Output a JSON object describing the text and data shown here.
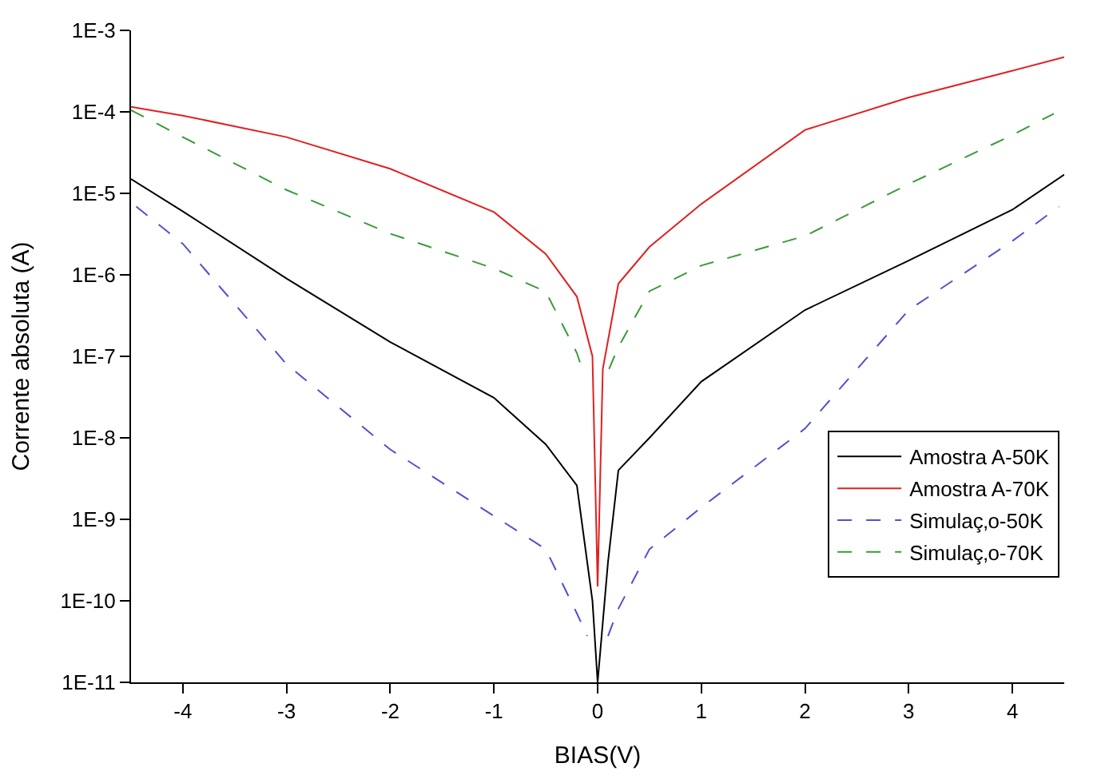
{
  "chart_data": {
    "type": "line",
    "xlabel": "BIAS(V)",
    "ylabel": "Corrente absoluta (A)",
    "log": "y",
    "grid": false,
    "legend": "bottom right",
    "marker": "none",
    "xlim": [
      -4.5,
      4.5
    ],
    "xticks": [
      -4,
      -3,
      -2,
      -1,
      0,
      1,
      2,
      3,
      4
    ],
    "ylim": [
      1e-11,
      0.001
    ],
    "yticks": [
      {
        "value": 1e-11,
        "label": "1E-11"
      },
      {
        "value": 1e-10,
        "label": "1E-10"
      },
      {
        "value": 1e-09,
        "label": "1E-9"
      },
      {
        "value": 1e-08,
        "label": "1E-8"
      },
      {
        "value": 1e-07,
        "label": "1E-7"
      },
      {
        "value": 1e-06,
        "label": "1E-6"
      },
      {
        "value": 1e-05,
        "label": "1E-5"
      },
      {
        "value": 0.0001,
        "label": "1E-4"
      },
      {
        "value": 0.001,
        "label": "1E-3"
      }
    ],
    "series": [
      {
        "name": "Amostra A-50K",
        "color": "#000000",
        "line_style": "solid",
        "x": [
          -4.5,
          -4,
          -3,
          -2,
          -1,
          -0.5,
          -0.2,
          -0.05,
          0,
          0.1,
          0.2,
          0.5,
          1,
          2,
          3,
          4,
          4.5
        ],
        "values": [
          1.5e-05,
          6e-06,
          9e-07,
          1.5e-07,
          3.1e-08,
          8.3e-09,
          2.6e-09,
          1e-10,
          1e-11,
          3e-10,
          4e-09,
          1e-08,
          4.9e-08,
          3.7e-07,
          1.5e-06,
          6.3e-06,
          1.7e-05
        ]
      },
      {
        "name": "Amostra A-70K",
        "color": "#e02020",
        "line_style": "solid",
        "x": [
          -4.5,
          -4,
          -3,
          -2,
          -1,
          -0.5,
          -0.2,
          -0.05,
          0,
          0.05,
          0.2,
          0.5,
          1,
          2,
          3,
          4,
          4.5
        ],
        "values": [
          0.000115,
          9e-05,
          4.9e-05,
          2e-05,
          5.9e-06,
          1.8e-06,
          5.4e-07,
          1e-07,
          1.5e-10,
          7e-08,
          7.8e-07,
          2.2e-06,
          7.4e-06,
          6e-05,
          0.00015,
          0.00032,
          0.00047
        ]
      },
      {
        "name": "Simulaç‚o-50K",
        "color": "#5050d0",
        "line_style": "dashed",
        "x": [
          -4.45,
          -4,
          -3,
          -2,
          -1,
          -0.5,
          -0.2,
          -0.1,
          0,
          0.1,
          0.2,
          0.5,
          1,
          2,
          3,
          4,
          4.45
        ],
        "values": [
          6.9e-06,
          2.4e-06,
          8e-08,
          7.2e-09,
          1.1e-09,
          4.3e-10,
          7e-11,
          3.7e-11,
          null,
          3.7e-11,
          8e-11,
          4.3e-10,
          1.4e-09,
          1.3e-08,
          3.7e-07,
          2.6e-06,
          6.9e-06
        ]
      },
      {
        "name": "Simulaç‚o-70K",
        "color": "#3a9a3a",
        "line_style": "dashed",
        "x": [
          -4.5,
          -4,
          -3,
          -2,
          -1,
          -0.5,
          -0.2,
          -0.15,
          0,
          0.11,
          0.2,
          0.5,
          1,
          2,
          3,
          4,
          4.4
        ],
        "values": [
          0.000105,
          4.9e-05,
          1.1e-05,
          3.2e-06,
          1.2e-06,
          6.2e-07,
          1.1e-07,
          7e-08,
          null,
          7e-08,
          1.3e-07,
          6.3e-07,
          1.3e-06,
          3e-06,
          1.3e-05,
          5.2e-05,
          9.5e-05
        ]
      }
    ]
  }
}
